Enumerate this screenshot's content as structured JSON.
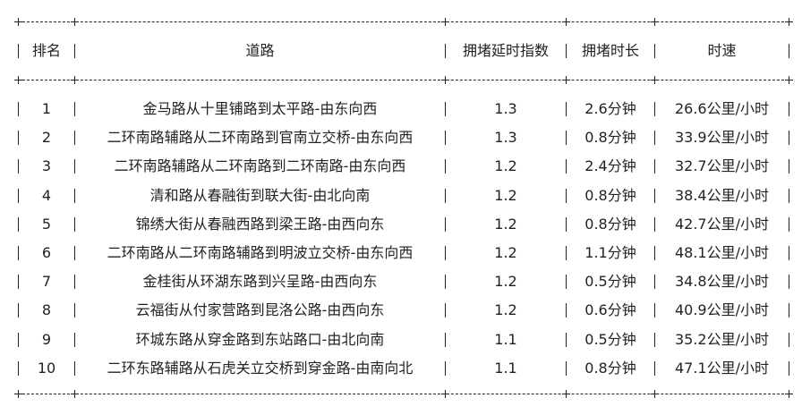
{
  "table": {
    "headers": [
      "排名",
      "道路",
      "拥堵延时指数",
      "拥堵时长",
      "时速"
    ],
    "rows": [
      [
        "1",
        "金马路从十里铺路到太平路-由东向西",
        "1.3",
        "2.6分钟",
        "26.6公里/小时"
      ],
      [
        "2",
        "二环南路辅路从二环南路到官南立交桥-由东向西",
        "1.3",
        "0.8分钟",
        "33.9公里/小时"
      ],
      [
        "3",
        "二环南路辅路从二环南路到二环南路-由东向西",
        "1.2",
        "2.4分钟",
        "32.7公里/小时"
      ],
      [
        "4",
        "清和路从春融街到联大街-由北向南",
        "1.2",
        "0.8分钟",
        "38.4公里/小时"
      ],
      [
        "5",
        "锦绣大街从春融西路到梁王路-由西向东",
        "1.2",
        "0.8分钟",
        "42.7公里/小时"
      ],
      [
        "6",
        "二环南路从二环南路辅路到明波立交桥-由东向西",
        "1.2",
        "1.1分钟",
        "48.1公里/小时"
      ],
      [
        "7",
        "金桂街从环湖东路到兴呈路-由西向东",
        "1.2",
        "0.5分钟",
        "34.8公里/小时"
      ],
      [
        "8",
        "云福街从付家营路到昆洛公路-由西向东",
        "1.2",
        "0.6分钟",
        "40.9公里/小时"
      ],
      [
        "9",
        "环城东路从穿金路到东站路口-由北向南",
        "1.1",
        "0.5分钟",
        "35.2公里/小时"
      ],
      [
        "10",
        "二环东路辅路从石虎关立交桥到穿金路-由南向北",
        "1.1",
        "0.8分钟",
        "47.1公里/小时"
      ]
    ]
  }
}
